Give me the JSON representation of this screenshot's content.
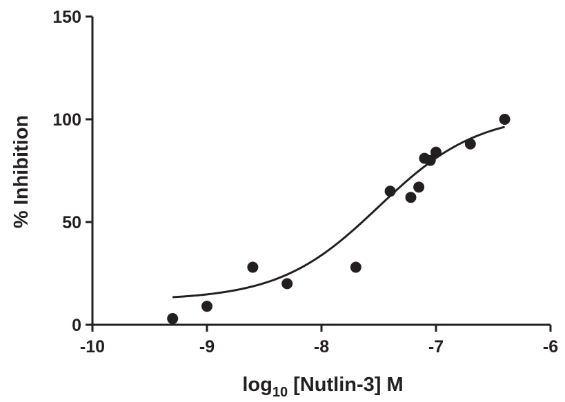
{
  "chart_data": {
    "type": "scatter",
    "xlabel": {
      "prefix": "log",
      "subscript": "10",
      "suffix": " [Nutlin-3] M"
    },
    "ylabel": "% Inhibition",
    "xlim": [
      -10,
      -6
    ],
    "ylim": [
      0,
      150
    ],
    "x_ticks": [
      -10,
      -9,
      -8,
      -7,
      -6
    ],
    "x_tick_labels": [
      "-10",
      "-9",
      "-8",
      "-7",
      "-6"
    ],
    "y_ticks": [
      0,
      50,
      100,
      150
    ],
    "y_tick_labels": [
      "0",
      "50",
      "100",
      "150"
    ],
    "grid": false,
    "series": [
      {
        "points": [
          {
            "x": -9.3,
            "y": 3
          },
          {
            "x": -9.0,
            "y": 9
          },
          {
            "x": -8.6,
            "y": 28
          },
          {
            "x": -8.3,
            "y": 20
          },
          {
            "x": -7.7,
            "y": 28
          },
          {
            "x": -7.4,
            "y": 65
          },
          {
            "x": -7.22,
            "y": 62
          },
          {
            "x": -7.15,
            "y": 67
          },
          {
            "x": -7.1,
            "y": 81
          },
          {
            "x": -7.05,
            "y": 80
          },
          {
            "x": -7.0,
            "y": 84
          },
          {
            "x": -6.7,
            "y": 88
          },
          {
            "x": -6.4,
            "y": 100
          }
        ],
        "marker_color": "#231f20"
      }
    ],
    "fit_curve": {
      "model": "sigmoidal dose-response",
      "bottom": 12,
      "top": 103,
      "log_ic50": -7.5,
      "hill_slope": 1.0,
      "x_range": [
        -9.3,
        -6.4
      ],
      "color": "#231f20"
    }
  }
}
